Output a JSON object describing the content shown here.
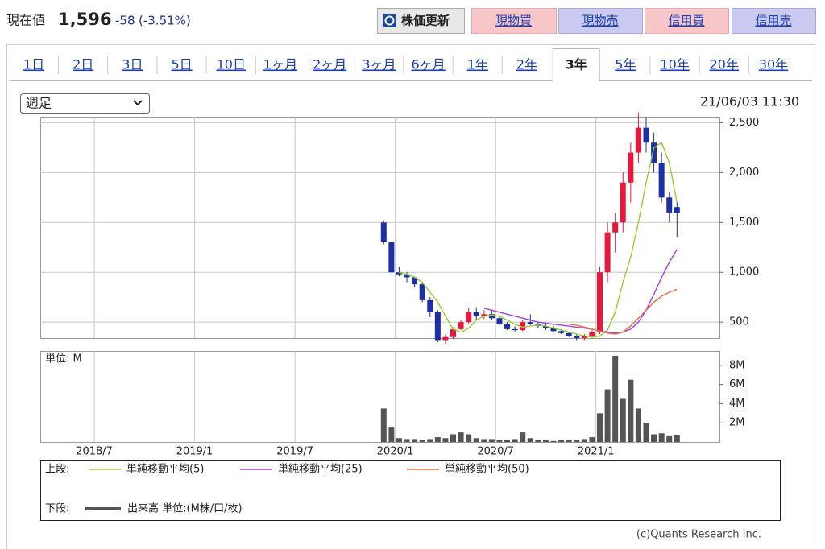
{
  "header": {
    "label": "現在値",
    "price": "1,596",
    "change": "-58",
    "change_pct": "(-3.51%)"
  },
  "buttons": [
    "株価更新",
    "現物買",
    "現物売",
    "信用買",
    "信用売"
  ],
  "tabs": [
    "1日",
    "2日",
    "3日",
    "5日",
    "10日",
    "1ヶ月",
    "2ヶ月",
    "3ヶ月",
    "6ヶ月",
    "1年",
    "2年",
    "3年",
    "5年",
    "10年",
    "20年",
    "30年"
  ],
  "active_tab": 11,
  "period_select": "週足",
  "timestamp": "21/06/03 11:30",
  "chart_data": [
    {
      "type": "candlestick",
      "x": [
        89,
        91,
        93,
        95,
        97,
        99,
        101,
        103,
        105,
        107,
        109,
        111,
        113,
        115,
        117,
        119,
        121,
        123,
        125,
        127,
        129,
        131,
        133,
        135,
        137,
        139,
        141,
        143,
        145,
        147,
        149,
        151,
        153,
        155,
        157,
        159,
        161,
        163,
        165
      ],
      "open": [
        1500,
        1300,
        1000,
        980,
        950,
        880,
        720,
        600,
        320,
        350,
        430,
        500,
        600,
        560,
        580,
        540,
        480,
        430,
        420,
        500,
        480,
        460,
        440,
        410,
        390,
        360,
        340,
        360,
        400,
        1000,
        1400,
        1500,
        1900,
        2200,
        2450,
        2300,
        2100,
        1750,
        1654
      ],
      "high": [
        1520,
        1300,
        1050,
        1000,
        960,
        900,
        750,
        620,
        380,
        450,
        520,
        640,
        650,
        620,
        620,
        560,
        500,
        460,
        520,
        580,
        500,
        490,
        460,
        430,
        400,
        380,
        380,
        420,
        1050,
        1500,
        1600,
        2000,
        2300,
        2600,
        2550,
        2400,
        2200,
        1800,
        1700
      ],
      "low": [
        1280,
        1000,
        960,
        900,
        850,
        700,
        550,
        300,
        280,
        330,
        420,
        480,
        520,
        530,
        520,
        470,
        420,
        400,
        410,
        470,
        440,
        420,
        400,
        380,
        350,
        320,
        320,
        340,
        380,
        900,
        1200,
        1400,
        1700,
        2100,
        2200,
        2000,
        1700,
        1500,
        1350
      ],
      "close": [
        1300,
        1000,
        980,
        950,
        880,
        720,
        600,
        320,
        350,
        430,
        500,
        600,
        560,
        580,
        540,
        480,
        430,
        420,
        500,
        480,
        460,
        440,
        410,
        390,
        360,
        340,
        360,
        400,
        1000,
        1400,
        1500,
        1900,
        2200,
        2450,
        2300,
        2100,
        1750,
        1600,
        1596
      ],
      "up_color": "#e8173c",
      "down_color": "#1c2fa8",
      "series": [
        {
          "name": "単純移動平均(5)",
          "color": "#9acd32",
          "values": [
            null,
            null,
            1000,
            980,
            950,
            900,
            800,
            700,
            560,
            430,
            400,
            440,
            520,
            560,
            570,
            560,
            520,
            480,
            450,
            460,
            470,
            460,
            440,
            420,
            400,
            380,
            360,
            350,
            360,
            420,
            600,
            900,
            1150,
            1500,
            1900,
            2250,
            2300,
            2100,
            1700
          ]
        },
        {
          "name": "単純移動平均(25)",
          "color": "#a43fe0",
          "values": [
            null,
            null,
            null,
            null,
            null,
            null,
            null,
            null,
            null,
            null,
            null,
            null,
            null,
            640,
            620,
            600,
            580,
            560,
            540,
            520,
            500,
            490,
            480,
            470,
            460,
            450,
            440,
            430,
            410,
            400,
            390,
            400,
            430,
            500,
            620,
            780,
            950,
            1100,
            1230
          ]
        },
        {
          "name": "単純移動平均(50)",
          "color": "#f06a3c",
          "values": [
            null,
            null,
            null,
            null,
            null,
            null,
            null,
            null,
            null,
            null,
            null,
            null,
            null,
            null,
            null,
            null,
            null,
            null,
            null,
            null,
            null,
            null,
            null,
            null,
            480,
            470,
            450,
            430,
            410,
            390,
            380,
            400,
            460,
            540,
            620,
            700,
            760,
            800,
            830
          ]
        }
      ],
      "xlim": [
        0,
        176
      ],
      "xticks": [
        14,
        40,
        66,
        92,
        118,
        144
      ],
      "ylim": [
        340,
        2560
      ],
      "yticks": [
        500,
        {
          "value": 1000,
          "label": "1,000"
        },
        {
          "value": 1500,
          "label": "1,500"
        },
        {
          "value": 2000,
          "label": "2,000"
        },
        {
          "value": 2500,
          "label": "2,500"
        }
      ],
      "grid": true
    },
    {
      "type": "bar",
      "y_label": "単位: M",
      "x": [
        89,
        91,
        93,
        95,
        97,
        99,
        101,
        103,
        105,
        107,
        109,
        111,
        113,
        115,
        117,
        119,
        121,
        123,
        125,
        127,
        129,
        131,
        133,
        135,
        137,
        139,
        141,
        143,
        145,
        147,
        149,
        151,
        153,
        155,
        157,
        159,
        161,
        163,
        165
      ],
      "values": [
        3.5,
        1.5,
        0.4,
        0.3,
        0.3,
        0.2,
        0.3,
        0.5,
        0.4,
        0.8,
        1.0,
        0.8,
        0.4,
        0.3,
        0.3,
        0.2,
        0.2,
        0.3,
        1.0,
        0.4,
        0.2,
        0.2,
        0.1,
        0.2,
        0.2,
        0.2,
        0.3,
        0.5,
        3.0,
        5.5,
        9.0,
        4.5,
        6.5,
        3.5,
        2.0,
        0.8,
        0.9,
        0.6,
        0.7
      ],
      "color": "#555555",
      "xlim": [
        0,
        176
      ],
      "xticks": [
        {
          "value": 14,
          "label": "2018/7"
        },
        {
          "value": 40,
          "label": "2019/1"
        },
        {
          "value": 66,
          "label": "2019/7"
        },
        {
          "value": 92,
          "label": "2020/1"
        },
        {
          "value": 118,
          "label": "2020/7"
        },
        {
          "value": 144,
          "label": "2021/1"
        }
      ],
      "ylim": [
        0,
        9.5
      ],
      "yticks": [
        {
          "value": 2,
          "label": "2M"
        },
        {
          "value": 4,
          "label": "4M"
        },
        {
          "value": 6,
          "label": "6M"
        },
        {
          "value": 8,
          "label": "8M"
        }
      ],
      "grid": true
    }
  ],
  "legend": {
    "upper_label": "上段:",
    "lower_label": "下段:",
    "lower_text": "出来高 単位:(M株/口/枚)"
  },
  "copyright": "(c)Quants Research Inc."
}
